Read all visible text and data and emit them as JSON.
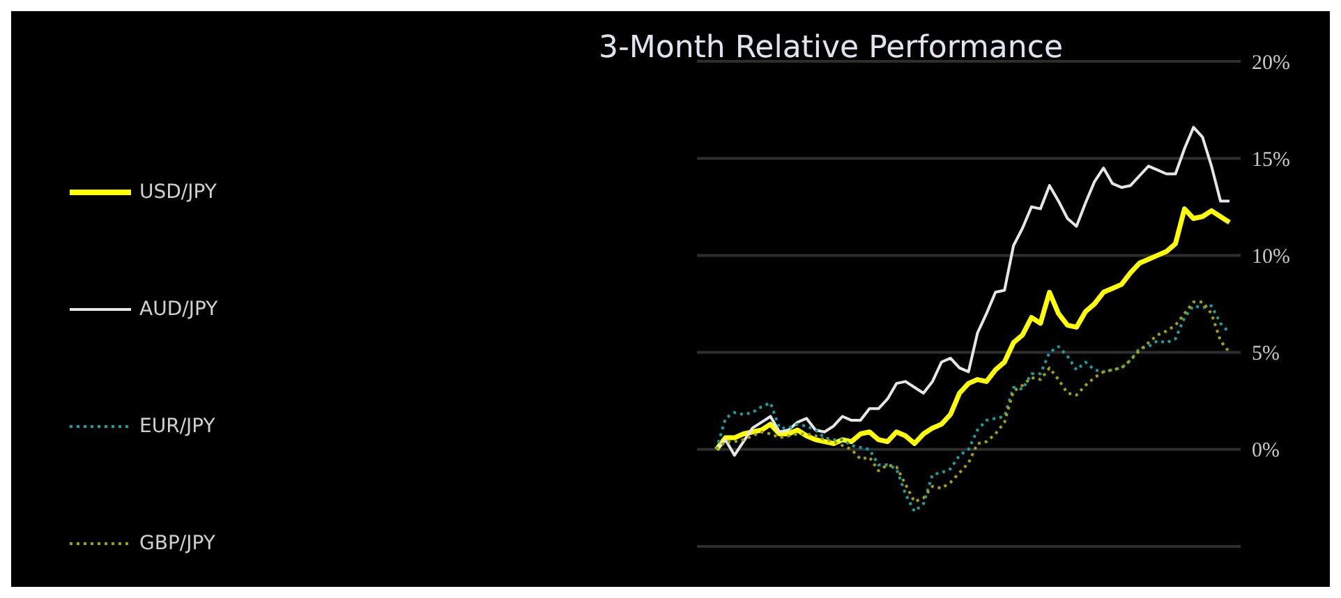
{
  "chart_data": {
    "type": "line",
    "title": "3-Month Relative Performance",
    "categories": [
      null,
      null,
      null,
      null,
      null,
      null,
      null,
      null,
      null,
      null,
      null,
      null,
      null,
      null,
      null,
      null,
      null,
      null,
      null,
      null,
      null,
      null,
      null,
      null,
      null,
      null,
      null,
      null,
      null,
      null,
      null,
      null,
      null,
      null,
      null,
      null,
      null,
      null,
      null,
      null,
      null,
      null,
      null,
      null,
      null,
      null,
      null,
      null,
      null,
      null,
      null,
      null,
      null,
      null,
      null,
      null,
      null,
      null
    ],
    "series": [
      {
        "name": "USD/JPY",
        "color": "#ffff00",
        "line_style": "solid",
        "values": [
          0,
          0.6,
          0.6,
          0.8,
          0.9,
          1.0,
          1.3,
          0.8,
          0.8,
          1.0,
          0.7,
          0.5,
          0.4,
          0.3,
          0.5,
          0.4,
          0.8,
          0.9,
          0.5,
          0.4,
          0.9,
          0.7,
          0.3,
          0.8,
          1.1,
          1.3,
          1.8,
          2.9,
          3.4,
          3.6,
          3.5,
          4.1,
          4.5,
          5.5,
          5.9,
          6.8,
          6.5,
          8.1,
          7.0,
          6.4,
          6.3,
          7.1,
          7.5,
          8.1,
          8.3,
          8.5,
          9.1,
          9.6,
          9.8,
          10.0,
          10.2,
          10.6,
          12.4,
          11.9,
          12.0,
          12.3,
          12.0,
          11.7
        ]
      },
      {
        "name": "AUD/JPY",
        "color": "#e6e6e6",
        "line_style": "solid",
        "values": [
          0,
          0.5,
          -0.3,
          0.4,
          1.1,
          1.4,
          1.7,
          0.9,
          1.0,
          1.4,
          1.6,
          1.0,
          0.9,
          1.2,
          1.7,
          1.5,
          1.5,
          2.1,
          2.1,
          2.6,
          3.4,
          3.5,
          3.2,
          2.9,
          3.5,
          4.5,
          4.7,
          4.2,
          4.0,
          6.0,
          7.0,
          8.1,
          8.2,
          10.5,
          11.4,
          12.5,
          12.4,
          13.6,
          12.8,
          11.9,
          11.5,
          12.7,
          13.8,
          14.5,
          13.7,
          13.5,
          13.6,
          14.1,
          14.6,
          14.4,
          14.2,
          14.2,
          15.5,
          16.6,
          16.1,
          14.6,
          12.8,
          12.8
        ]
      },
      {
        "name": "EUR/JPY",
        "color": "#18a0a0",
        "line_style": "dotted",
        "values": [
          0,
          1.6,
          1.9,
          1.8,
          1.9,
          2.2,
          2.4,
          1.1,
          1.1,
          1.3,
          1.2,
          1.0,
          0.6,
          0.5,
          0.5,
          0.2,
          0.1,
          0.0,
          -0.8,
          -0.8,
          -1.0,
          -2.3,
          -3.2,
          -2.8,
          -1.3,
          -1.2,
          -1.0,
          -0.3,
          0.0,
          1.0,
          1.5,
          1.6,
          1.7,
          3.2,
          3.1,
          3.9,
          3.9,
          5.0,
          5.3,
          4.8,
          4.1,
          4.5,
          4.1,
          4.0,
          4.1,
          4.2,
          4.6,
          5.2,
          5.3,
          5.6,
          5.5,
          5.7,
          6.8,
          7.4,
          7.3,
          7.4,
          6.5,
          6.0
        ]
      },
      {
        "name": "GBP/JPY",
        "color": "#a3a300",
        "line_style": "dotted",
        "values": [
          0,
          0.4,
          0.4,
          0.5,
          0.7,
          0.9,
          0.8,
          0.6,
          0.7,
          0.8,
          0.8,
          0.7,
          0.5,
          0.4,
          0.2,
          0.0,
          -0.5,
          -0.4,
          -1.1,
          -0.8,
          -0.9,
          -1.8,
          -2.7,
          -2.5,
          -1.9,
          -2.0,
          -1.7,
          -1.2,
          -0.7,
          0.3,
          0.4,
          0.8,
          1.4,
          3.0,
          3.3,
          3.7,
          3.6,
          4.2,
          3.6,
          2.9,
          2.8,
          3.3,
          3.7,
          4.0,
          4.1,
          4.2,
          4.6,
          5.1,
          5.5,
          5.9,
          6.1,
          6.4,
          7.0,
          7.6,
          7.6,
          7.0,
          5.6,
          5.0
        ]
      }
    ],
    "ylim": [
      -5,
      20
    ],
    "yticks": [
      {
        "value": -5,
        "label": null
      },
      {
        "value": 0,
        "label": "0%"
      },
      {
        "value": 5,
        "label": "5%"
      },
      {
        "value": 10,
        "label": "10%"
      },
      {
        "value": 15,
        "label": "15%"
      },
      {
        "value": 20,
        "label": "20%"
      }
    ],
    "grid": "y",
    "legend": "left",
    "tick_labels": "y",
    "marker": "none"
  }
}
